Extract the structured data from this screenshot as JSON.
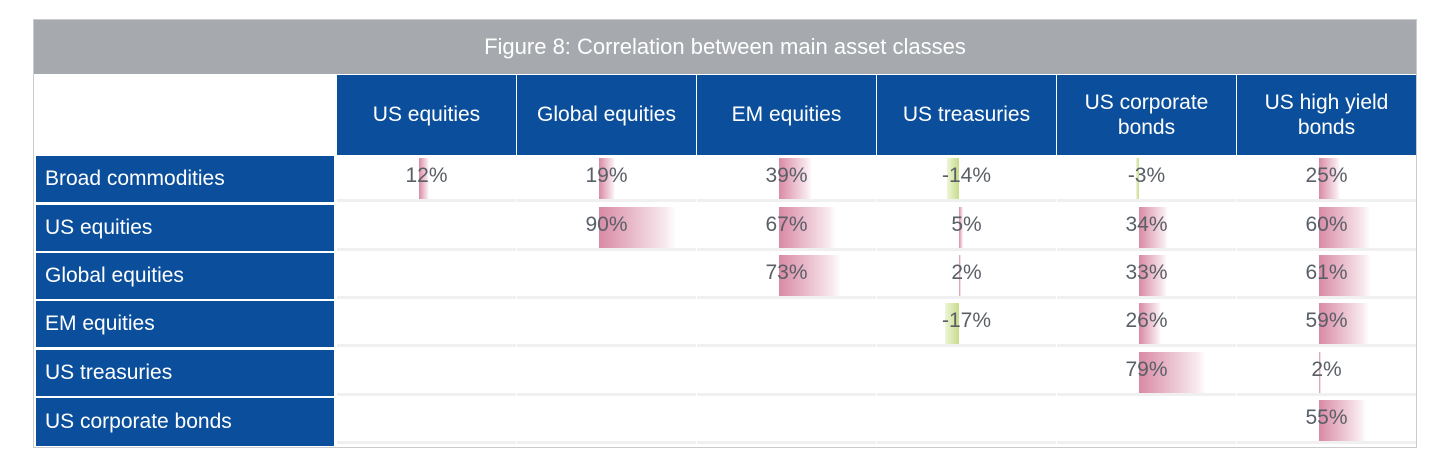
{
  "chart_data": {
    "type": "table",
    "title": "Figure 8: Correlation between main asset classes",
    "columns": [
      "US equities",
      "Global equities",
      "EM equities",
      "US treasuries",
      "US corporate bonds",
      "US high yield bonds"
    ],
    "rows": [
      {
        "label": "Broad commodities",
        "values": [
          12,
          19,
          39,
          -14,
          -3,
          25
        ]
      },
      {
        "label": "US equities",
        "values": [
          null,
          90,
          67,
          5,
          34,
          60
        ]
      },
      {
        "label": "Global equities",
        "values": [
          null,
          null,
          73,
          2,
          33,
          61
        ]
      },
      {
        "label": "EM equities",
        "values": [
          null,
          null,
          null,
          -17,
          26,
          59
        ]
      },
      {
        "label": "US treasuries",
        "values": [
          null,
          null,
          null,
          null,
          79,
          2
        ]
      },
      {
        "label": "US corporate bonds",
        "values": [
          null,
          null,
          null,
          null,
          null,
          55
        ]
      }
    ],
    "unit": "%",
    "colors": {
      "header": "#0b4f9c",
      "title_bar": "#a6a9ad",
      "positive_bar": "#d98aa5",
      "negative_bar": "#c8dc8a"
    }
  }
}
